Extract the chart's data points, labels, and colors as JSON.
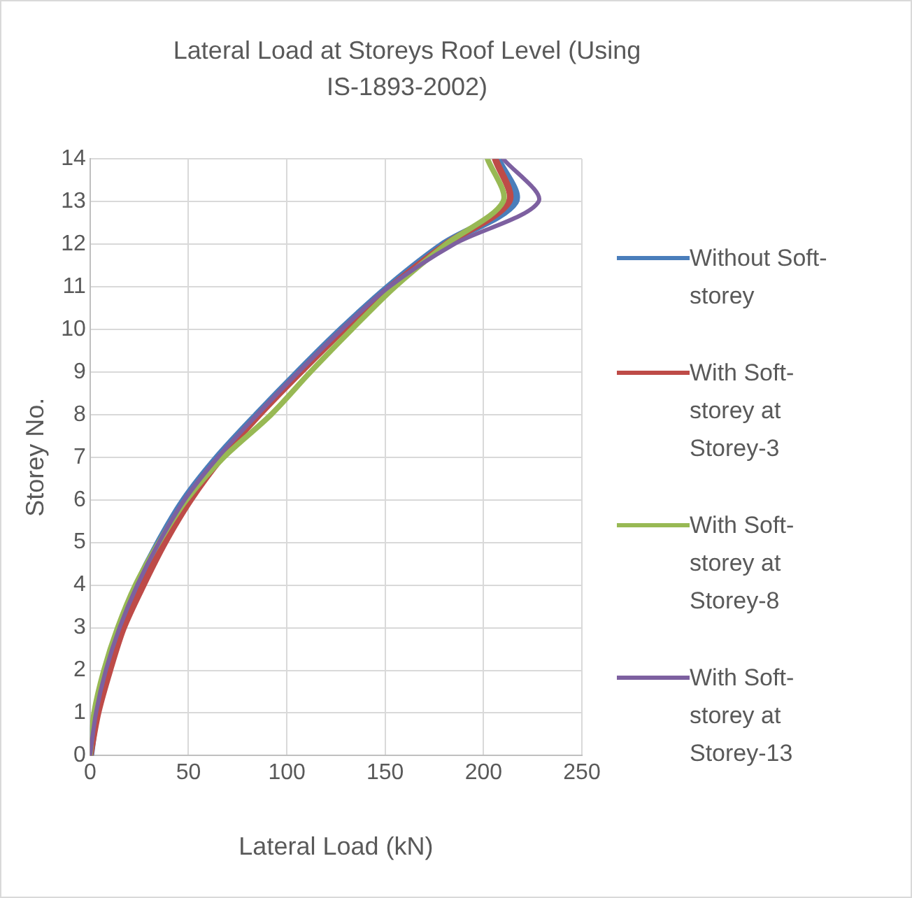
{
  "chart_data": {
    "type": "line",
    "title": "Lateral Load at Storeys Roof Level (Using IS-1893-2002)",
    "xlabel": "Lateral Load (kN)",
    "ylabel": "Storey No.",
    "xlim": [
      0,
      250
    ],
    "xticks": [
      0,
      50,
      100,
      150,
      200,
      250
    ],
    "ylim": [
      0,
      14
    ],
    "yticks": [
      0,
      1,
      2,
      3,
      4,
      5,
      6,
      7,
      8,
      9,
      10,
      11,
      12,
      13,
      14
    ],
    "grid": true,
    "legend": "right",
    "marker": "none",
    "line_style": "solid",
    "series": [
      {
        "name": "Without Soft-storey",
        "color": "#4a7ebb",
        "x": [
          0,
          3,
          8,
          15,
          24,
          35,
          48,
          65,
          85,
          106,
          128,
          152,
          180,
          216,
          207
        ],
        "values": [
          0,
          1,
          2,
          3,
          4,
          5,
          6,
          7,
          8,
          9,
          10,
          11,
          12,
          13,
          14
        ]
      },
      {
        "name": "With Soft-storey at Storey-3",
        "color": "#be4b48",
        "x": [
          0,
          4,
          10,
          17,
          27,
          38,
          51,
          67,
          86,
          107,
          129,
          153,
          181,
          213,
          206
        ],
        "values": [
          0,
          1,
          2,
          3,
          4,
          5,
          6,
          7,
          8,
          9,
          10,
          11,
          12,
          13,
          14
        ]
      },
      {
        "name": "With Soft-storey at Storey-8",
        "color": "#98b954",
        "x": [
          0,
          2,
          7,
          14,
          23,
          35,
          49,
          68,
          92,
          112,
          133,
          155,
          181,
          210,
          202
        ],
        "values": [
          0,
          1,
          2,
          3,
          4,
          5,
          6,
          7,
          8,
          9,
          10,
          11,
          12,
          13,
          14
        ]
      },
      {
        "name": "With Soft-storey at Storey-13",
        "color": "#7d60a0",
        "x": [
          0,
          3,
          8,
          15,
          24,
          35,
          48,
          65,
          85,
          106,
          128,
          152,
          185,
          228,
          210
        ],
        "values": [
          0,
          1,
          2,
          3,
          4,
          5,
          6,
          7,
          8,
          9,
          10,
          11,
          12,
          13,
          14
        ]
      }
    ]
  }
}
